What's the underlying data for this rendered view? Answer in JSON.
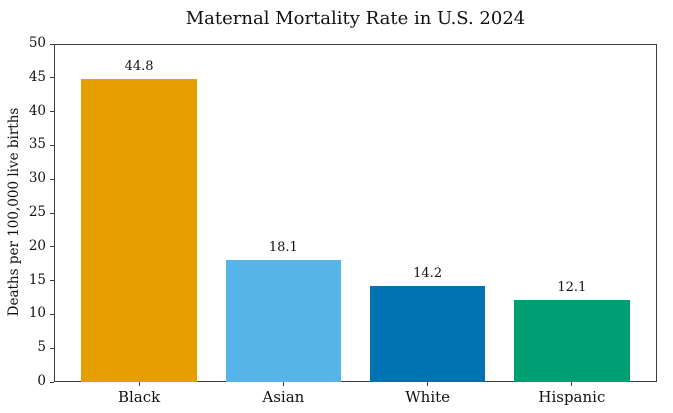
{
  "title": "Maternal Mortality Rate in U.S. 2024",
  "chart_data": {
    "type": "bar",
    "title": "Maternal Mortality Rate in U.S. 2024",
    "categories": [
      "Black",
      "Asian",
      "White",
      "Hispanic"
    ],
    "values": [
      44.8,
      18.1,
      14.2,
      12.1
    ],
    "value_labels": [
      "44.8",
      "18.1",
      "14.2",
      "12.1"
    ],
    "bar_colors": [
      "#E69F00",
      "#56B4E9",
      "#0072B2",
      "#009E73"
    ],
    "xlabel": "",
    "ylabel": "Deaths per 100,000 live births",
    "ylim": [
      0,
      50
    ],
    "yticks": [
      0,
      5,
      10,
      15,
      20,
      25,
      30,
      35,
      40,
      45,
      50
    ],
    "ytick_labels": [
      "0",
      "5",
      "10",
      "15",
      "20",
      "25",
      "30",
      "35",
      "40",
      "45",
      "50"
    ],
    "grid": false,
    "legend": false,
    "text_color": "#111111",
    "spine_color": "#3c3c3c",
    "background_color": "#ffffff"
  }
}
